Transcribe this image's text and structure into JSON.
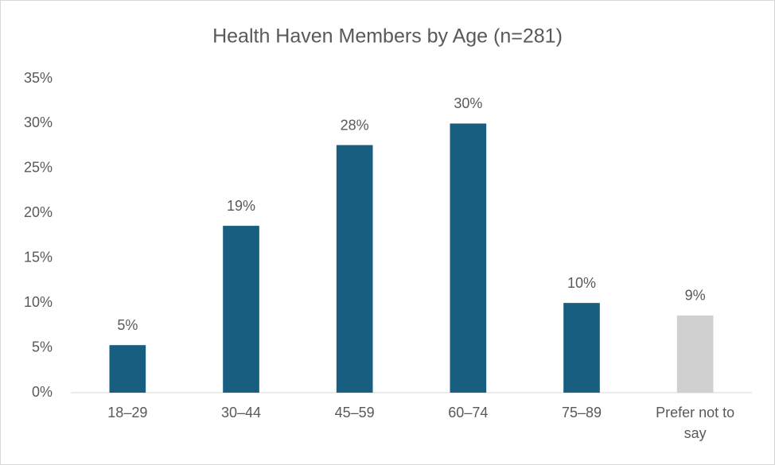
{
  "chart_data": {
    "type": "bar",
    "title": "Health Haven Members by Age (n=281)",
    "categories": [
      "18–29",
      "30–44",
      "45–59",
      "60–74",
      "75–89",
      "Prefer not to say"
    ],
    "values": [
      5.3,
      18.6,
      27.6,
      30,
      10,
      8.6
    ],
    "value_labels": [
      "5%",
      "19%",
      "28%",
      "30%",
      "10%",
      "9%"
    ],
    "colors": [
      "#175e81",
      "#175e81",
      "#175e81",
      "#175e81",
      "#175e81",
      "#d0d0d0"
    ],
    "ylim": [
      0,
      35
    ],
    "yticks": [
      {
        "value": 0,
        "label": "0%"
      },
      {
        "value": 5,
        "label": "5%"
      },
      {
        "value": 10,
        "label": "10%"
      },
      {
        "value": 15,
        "label": "15%"
      },
      {
        "value": 20,
        "label": "20%"
      },
      {
        "value": 25,
        "label": "25%"
      },
      {
        "value": 30,
        "label": "30%"
      },
      {
        "value": 35,
        "label": "35%"
      }
    ],
    "grid": false
  }
}
